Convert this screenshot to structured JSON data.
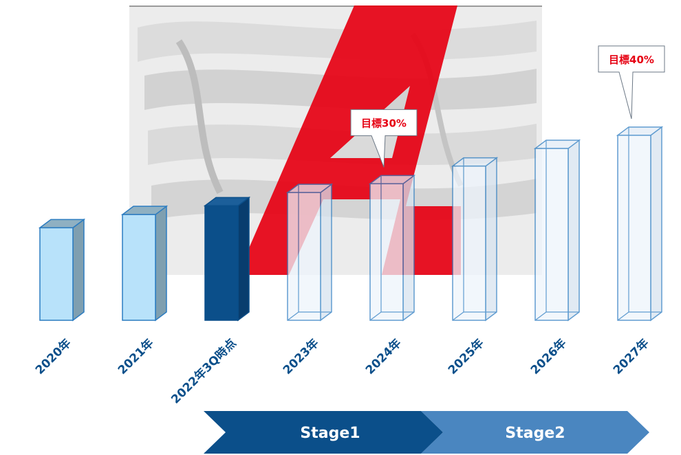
{
  "chart_data": {
    "type": "bar",
    "title": "",
    "xlabel": "",
    "ylabel": "",
    "categories": [
      "2020年",
      "2021年",
      "2022年3Q時点",
      "2023年",
      "2024年",
      "2025年",
      "2026年",
      "2027年"
    ],
    "values": [
      10.5,
      12,
      13,
      14.5,
      15.5,
      17.5,
      19.5,
      21
    ],
    "ylim": [
      0,
      22
    ],
    "grid": false,
    "bar_states": [
      "actual",
      "actual",
      "current",
      "target",
      "target",
      "target",
      "target",
      "target"
    ],
    "annotations": [
      {
        "category": "2024年",
        "text": "目標30%"
      },
      {
        "category": "2027年",
        "text": "目標40%"
      }
    ],
    "stages": [
      {
        "label": "Stage1",
        "from": "2023年",
        "to": "2024年"
      },
      {
        "label": "Stage2",
        "from": "2025年",
        "to": "2027年"
      }
    ]
  },
  "colors": {
    "actual_front": "#b8e2fa",
    "actual_side": "#7f9fb0",
    "actual_top": "#8fb0c2",
    "current_front": "#0b4f8a",
    "current_side": "#083d6e",
    "current_top": "#1c5f9a",
    "outline": "#2b7cc1",
    "target_front": "#eef5fc",
    "target_side": "#d7e3ef",
    "target_top": "#e2ecf6",
    "tick": "#0b4f8a",
    "annotation": "#e60012",
    "stage1": "#0b4f8a",
    "stage2": "#4a86c0",
    "logo_red": "#e60012"
  }
}
